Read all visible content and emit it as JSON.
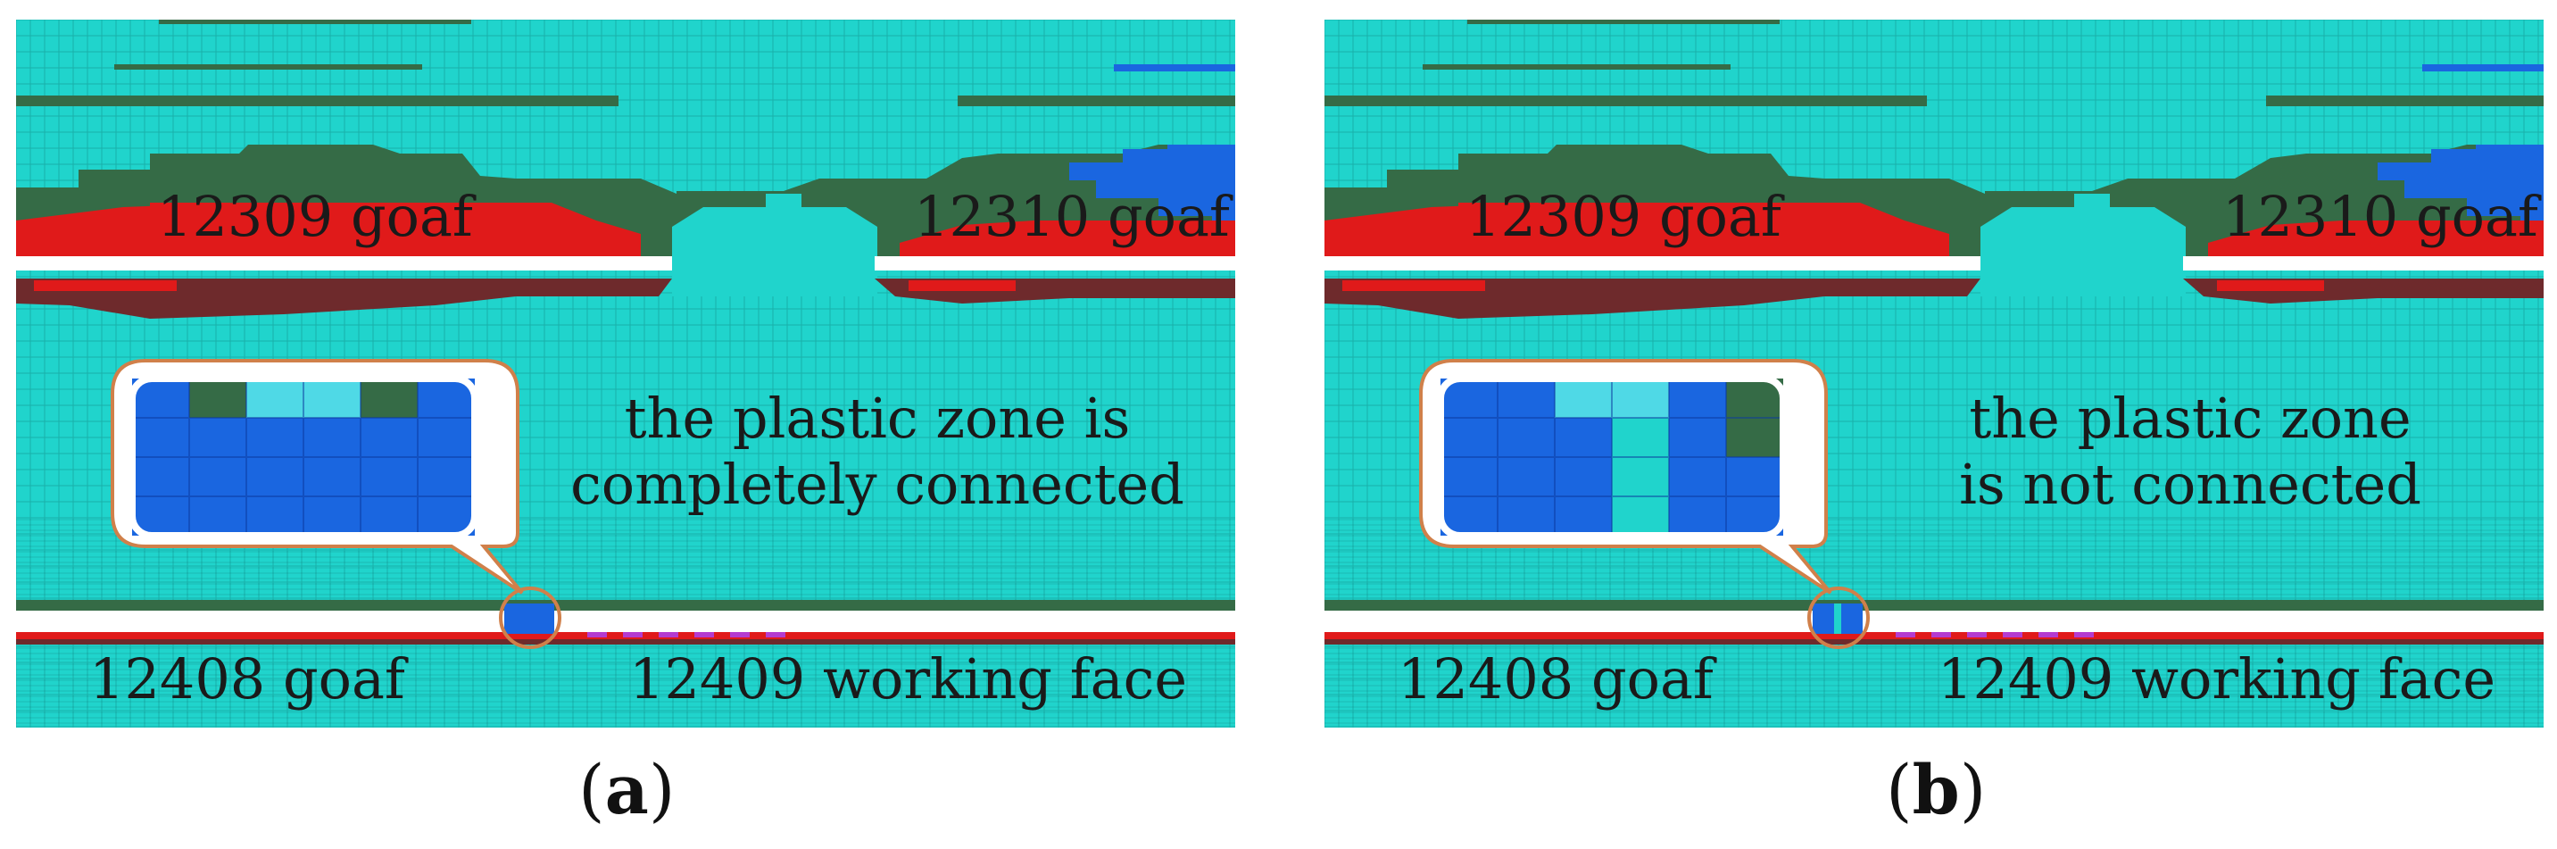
{
  "colors": {
    "elastic": "#20d4cc",
    "grid_line": "#0e6f6d",
    "shear_tension_past": "#356b46",
    "shear_now": "#e01a1a",
    "shear_past": "#6e2a2c",
    "tension_now": "#1a66e0",
    "tension_past": "#b43bd0",
    "callout_border": "#d0804a",
    "excavated": "#ffffff"
  },
  "panels": [
    {
      "id": "a",
      "caption_letter": "a",
      "goaf_upper_left": "12309 goaf",
      "goaf_upper_right": "12310 goaf",
      "goaf_lower_left": "12408 goaf",
      "working_face": "12409 working face",
      "note_line1": "the plastic zone is",
      "note_line2": "completely connected",
      "connected": true
    },
    {
      "id": "b",
      "caption_letter": "b",
      "goaf_upper_left": "12309 goaf",
      "goaf_upper_right": "12310 goaf",
      "goaf_lower_left": "12408 goaf",
      "working_face": "12409 working face",
      "note_line1": "the plastic zone",
      "note_line2": "is not connected",
      "connected": false
    }
  ]
}
